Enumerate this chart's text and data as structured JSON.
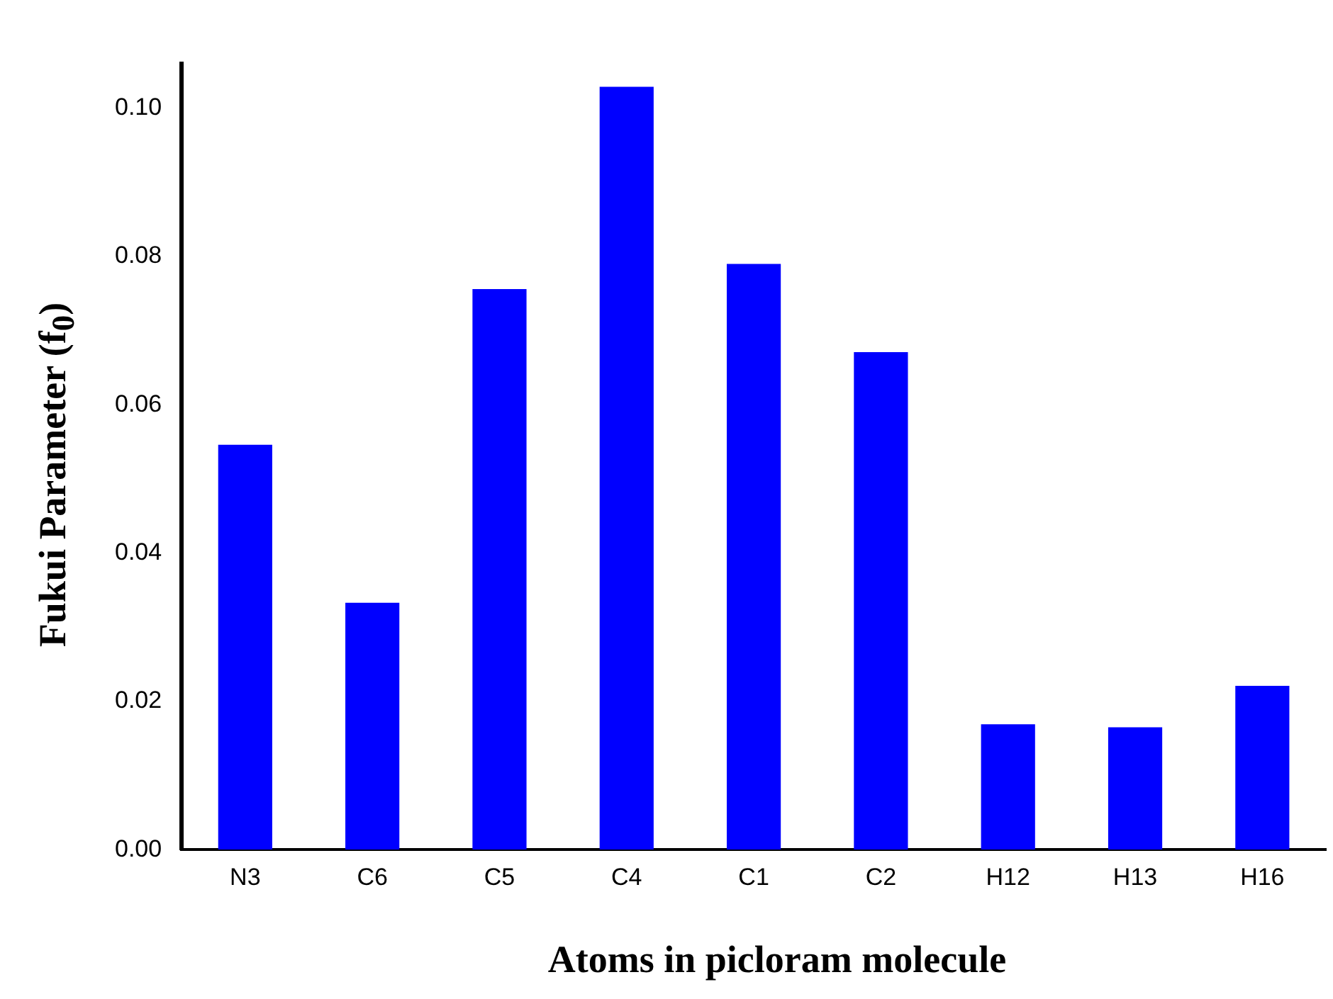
{
  "chart_data": {
    "type": "bar",
    "xlabel": "Atoms in picloram molecule",
    "ylabel": "Fukui Parameter (f$_{0}$)",
    "categories": [
      "N3",
      "C6",
      "C5",
      "C4",
      "C1",
      "C2",
      "H12",
      "H13",
      "H16"
    ],
    "values": [
      0.0546,
      0.0333,
      0.0756,
      0.1029,
      0.079,
      0.0671,
      0.0169,
      0.0165,
      0.0221
    ],
    "color": "#0000ff",
    "ylim": [
      0,
      0.106
    ],
    "yticks": [
      {
        "value": 0,
        "label": "0.00"
      },
      {
        "value": 0.02,
        "label": "0.02"
      },
      {
        "value": 0.04,
        "label": "0.04"
      },
      {
        "value": 0.06,
        "label": "0.06"
      },
      {
        "value": 0.08,
        "label": "0.08"
      },
      {
        "value": 0.1,
        "label": "0.10"
      }
    ],
    "grid": false,
    "legend": false
  }
}
